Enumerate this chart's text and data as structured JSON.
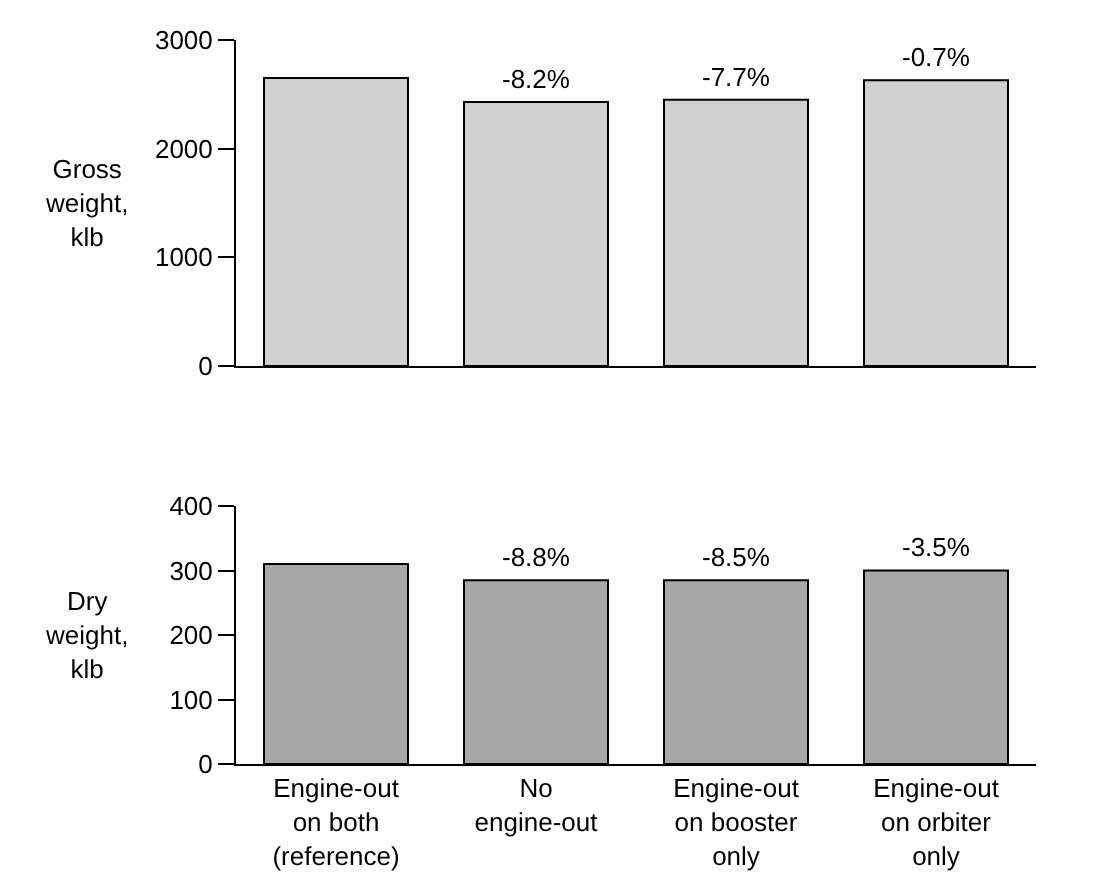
{
  "chart_data": [
    {
      "type": "bar",
      "ylabel": "Gross weight, klb",
      "categories": [
        "Engine-out\non both\n(reference)",
        "No\nengine-out",
        "Engine-out\non booster\nonly",
        "Engine-out\non orbiter\nonly"
      ],
      "values": [
        2650,
        2430,
        2450,
        2630
      ],
      "annotations": [
        {
          "text": "-8.2%",
          "x": "No\nengine-out",
          "y": 2430
        },
        {
          "text": "-7.7%",
          "x": "Engine-out\non booster\nonly",
          "y": 2450
        },
        {
          "text": "-0.7%",
          "x": "Engine-out\non orbiter\nonly",
          "y": 2630
        }
      ],
      "color": "#cfcfcf",
      "ylim": [
        0,
        3000
      ],
      "yticks": [
        0,
        1000,
        2000,
        3000
      ],
      "grid": false,
      "tick_labels": "y"
    },
    {
      "type": "bar",
      "ylabel": "Dry weight, klb",
      "categories": [
        "Engine-out\non both\n(reference)",
        "No\nengine-out",
        "Engine-out\non booster\nonly",
        "Engine-out\non orbiter\nonly"
      ],
      "values": [
        310,
        285,
        285,
        300
      ],
      "annotations": [
        {
          "text": "-8.8%",
          "x": "No\nengine-out",
          "y": 285
        },
        {
          "text": "-8.5%",
          "x": "Engine-out\non booster\nonly",
          "y": 285
        },
        {
          "text": "-3.5%",
          "x": "Engine-out\non orbiter\nonly",
          "y": 300
        }
      ],
      "color": "#a6a6a6",
      "ylim": [
        0,
        400
      ],
      "yticks": [
        0,
        100,
        200,
        300,
        400
      ],
      "grid": false
    }
  ]
}
